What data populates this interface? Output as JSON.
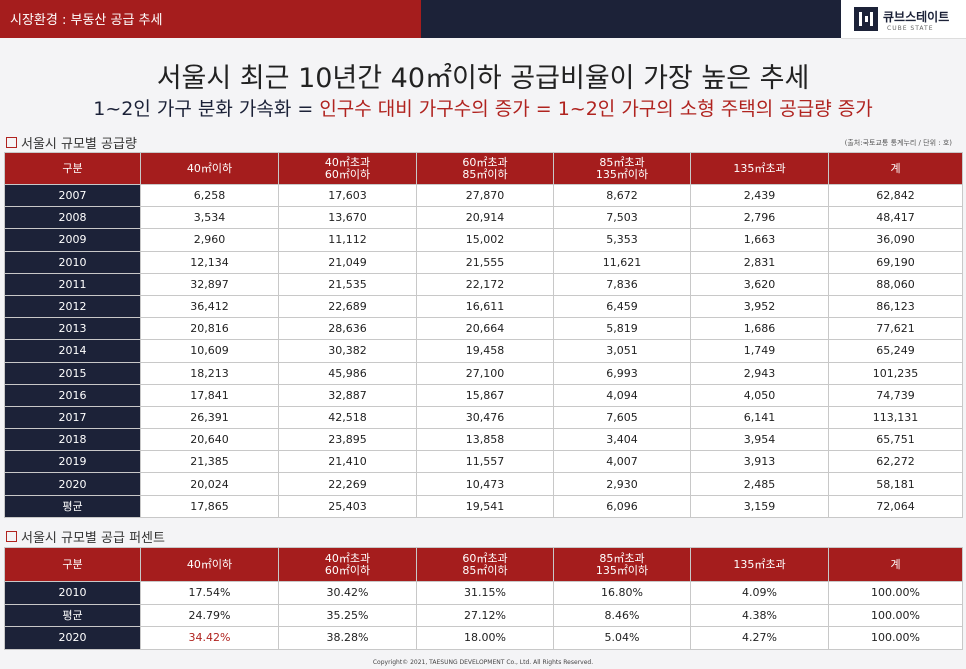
{
  "header": {
    "section": "시장환경 : 부동산 공급 추세",
    "logo_name": "큐브스테이트",
    "logo_sub": "CUBE STATE",
    "colors": {
      "red": "#a51d1d",
      "navy": "#1c2238"
    }
  },
  "title": {
    "main": "서울시 최근 10년간 40㎡이하 공급비율이 가장 높은 추세",
    "sub_part1": "1~2인 가구 분화 가속화 = ",
    "sub_part2": "인구수 대비 가구수의 증가 = 1~2인 가구의 소형 주택의 공급량 증가"
  },
  "table1": {
    "label": "서울시 규모별 공급량",
    "source": "(출처:국토교통 통계누리 / 단위 : 호)",
    "headers": [
      [
        "구분"
      ],
      [
        "40㎡이하"
      ],
      [
        "40㎡초과",
        "60㎡이하"
      ],
      [
        "60㎡초과",
        "85㎡이하"
      ],
      [
        "85㎡초과",
        "135㎡이하"
      ],
      [
        "135㎡초과"
      ],
      [
        "계"
      ]
    ],
    "rows": [
      [
        "2007",
        "6,258",
        "17,603",
        "27,870",
        "8,672",
        "2,439",
        "62,842"
      ],
      [
        "2008",
        "3,534",
        "13,670",
        "20,914",
        "7,503",
        "2,796",
        "48,417"
      ],
      [
        "2009",
        "2,960",
        "11,112",
        "15,002",
        "5,353",
        "1,663",
        "36,090"
      ],
      [
        "2010",
        "12,134",
        "21,049",
        "21,555",
        "11,621",
        "2,831",
        "69,190"
      ],
      [
        "2011",
        "32,897",
        "21,535",
        "22,172",
        "7,836",
        "3,620",
        "88,060"
      ],
      [
        "2012",
        "36,412",
        "22,689",
        "16,611",
        "6,459",
        "3,952",
        "86,123"
      ],
      [
        "2013",
        "20,816",
        "28,636",
        "20,664",
        "5,819",
        "1,686",
        "77,621"
      ],
      [
        "2014",
        "10,609",
        "30,382",
        "19,458",
        "3,051",
        "1,749",
        "65,249"
      ],
      [
        "2015",
        "18,213",
        "45,986",
        "27,100",
        "6,993",
        "2,943",
        "101,235"
      ],
      [
        "2016",
        "17,841",
        "32,887",
        "15,867",
        "4,094",
        "4,050",
        "74,739"
      ],
      [
        "2017",
        "26,391",
        "42,518",
        "30,476",
        "7,605",
        "6,141",
        "113,131"
      ],
      [
        "2018",
        "20,640",
        "23,895",
        "13,858",
        "3,404",
        "3,954",
        "65,751"
      ],
      [
        "2019",
        "21,385",
        "21,410",
        "11,557",
        "4,007",
        "3,913",
        "62,272"
      ],
      [
        "2020",
        "20,024",
        "22,269",
        "10,473",
        "2,930",
        "2,485",
        "58,181"
      ],
      [
        "평균",
        "17,865",
        "25,403",
        "19,541",
        "6,096",
        "3,159",
        "72,064"
      ]
    ]
  },
  "table2": {
    "label": "서울시 규모별 공급 퍼센트",
    "headers": [
      [
        "구분"
      ],
      [
        "40㎡이하"
      ],
      [
        "40㎡초과",
        "60㎡이하"
      ],
      [
        "60㎡초과",
        "85㎡이하"
      ],
      [
        "85㎡초과",
        "135㎡이하"
      ],
      [
        "135㎡초과"
      ],
      [
        "계"
      ]
    ],
    "rows": [
      [
        "2010",
        "17.54%",
        "30.42%",
        "31.15%",
        "16.80%",
        "4.09%",
        "100.00%"
      ],
      [
        "평균",
        "24.79%",
        "35.25%",
        "27.12%",
        "8.46%",
        "4.38%",
        "100.00%"
      ],
      [
        "2020",
        "34.42%",
        "38.28%",
        "18.00%",
        "5.04%",
        "4.27%",
        "100.00%"
      ]
    ],
    "highlight": {
      "row": 2,
      "col": 1,
      "color": "#b0231f"
    }
  },
  "footer": {
    "copyright": "Copyright© 2021, TAESUNG DEVELOPMENT Co., Ltd. All Rights Reserved."
  }
}
